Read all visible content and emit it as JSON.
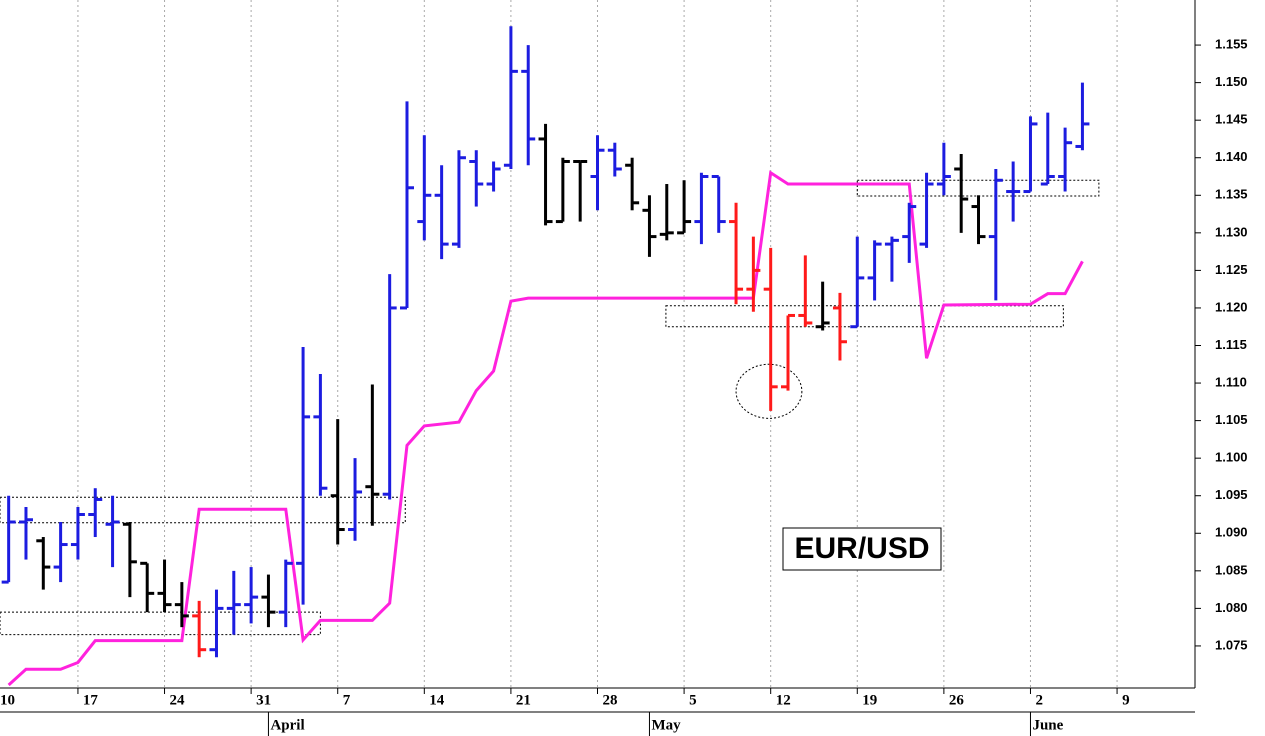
{
  "chart_data": {
    "type": "ohlc",
    "title": "EUR/USD",
    "x": [
      1,
      2,
      3,
      4,
      5,
      6,
      7,
      8,
      9,
      10,
      11,
      12,
      13,
      14,
      15,
      16,
      17,
      18,
      19,
      20,
      21,
      22,
      23,
      24,
      25,
      26,
      27,
      28,
      29,
      30,
      31,
      32,
      33,
      34,
      35,
      36,
      37,
      38,
      39,
      40,
      41,
      42,
      43,
      44,
      45,
      46,
      47,
      48,
      49,
      50,
      51,
      52,
      53,
      54,
      55,
      56,
      57,
      58,
      59,
      60,
      61,
      62,
      63
    ],
    "open": [
      1.0835,
      1.0915,
      1.089,
      1.0855,
      1.0885,
      1.0925,
      1.0912,
      1.0912,
      1.086,
      1.082,
      1.0805,
      1.079,
      1.0745,
      1.08,
      1.0805,
      1.0815,
      1.0795,
      1.086,
      1.1055,
      1.095,
      1.0905,
      1.0962,
      1.0952,
      1.12,
      1.1315,
      1.135,
      1.1285,
      1.1395,
      1.1365,
      1.139,
      1.1515,
      1.1425,
      1.1315,
      1.1395,
      1.1375,
      1.141,
      1.139,
      1.133,
      1.1298,
      1.13,
      1.1315,
      1.1375,
      1.1315,
      1.1225,
      1.1225,
      1.1095,
      1.119,
      1.1175,
      1.12,
      1.1175,
      1.124,
      1.1285,
      1.1295,
      1.1285,
      1.1365,
      1.1385,
      1.1335,
      1.1295,
      1.1355,
      1.1355,
      1.1365,
      1.1375,
      1.1415
    ],
    "high": [
      1.095,
      1.0935,
      1.0895,
      1.0915,
      1.0935,
      1.096,
      1.095,
      1.0915,
      1.086,
      1.0865,
      1.0835,
      1.081,
      1.0825,
      1.085,
      1.0855,
      1.0845,
      1.0865,
      1.1148,
      1.1112,
      1.1052,
      1.1,
      1.1098,
      1.1245,
      1.1475,
      1.143,
      1.139,
      1.141,
      1.141,
      1.1395,
      1.1575,
      1.155,
      1.1445,
      1.14,
      1.1395,
      1.143,
      1.142,
      1.14,
      1.135,
      1.1365,
      1.137,
      1.138,
      1.1375,
      1.134,
      1.1295,
      1.128,
      1.119,
      1.127,
      1.1235,
      1.122,
      1.1295,
      1.129,
      1.1295,
      1.134,
      1.138,
      1.142,
      1.1405,
      1.135,
      1.1385,
      1.1395,
      1.1455,
      1.146,
      1.144,
      1.15
    ],
    "low": [
      1.0835,
      1.0865,
      1.0825,
      1.0835,
      1.0865,
      1.0895,
      1.0855,
      1.0815,
      1.0795,
      1.0795,
      1.0775,
      1.0735,
      1.0735,
      1.0765,
      1.078,
      1.0775,
      1.0775,
      1.0805,
      1.095,
      1.0885,
      1.089,
      1.091,
      1.0945,
      1.12,
      1.129,
      1.1265,
      1.128,
      1.1335,
      1.1355,
      1.1385,
      1.139,
      1.131,
      1.1315,
      1.1315,
      1.133,
      1.1375,
      1.133,
      1.1268,
      1.129,
      1.13,
      1.1285,
      1.13,
      1.1205,
      1.1195,
      1.1063,
      1.109,
      1.1175,
      1.117,
      1.113,
      1.1175,
      1.121,
      1.1235,
      1.126,
      1.128,
      1.135,
      1.13,
      1.1285,
      1.121,
      1.1315,
      1.1355,
      1.1365,
      1.1355,
      1.141
    ],
    "close": [
      1.0915,
      1.0918,
      1.0855,
      1.0885,
      1.0925,
      1.0945,
      1.0915,
      1.0862,
      1.082,
      1.0805,
      1.079,
      1.0745,
      1.08,
      1.0805,
      1.0815,
      1.0795,
      1.086,
      1.1055,
      1.096,
      1.0905,
      1.0955,
      1.0952,
      1.12,
      1.136,
      1.135,
      1.1285,
      1.14,
      1.1365,
      1.1385,
      1.1515,
      1.1425,
      1.1315,
      1.1395,
      1.1395,
      1.141,
      1.1385,
      1.134,
      1.1295,
      1.13,
      1.1315,
      1.1375,
      1.1315,
      1.1225,
      1.125,
      1.1095,
      1.119,
      1.118,
      1.118,
      1.1155,
      1.124,
      1.1285,
      1.129,
      1.1335,
      1.1365,
      1.1375,
      1.1345,
      1.1295,
      1.137,
      1.1355,
      1.1445,
      1.1375,
      1.142,
      1.1445
    ],
    "bar_colors": [
      "#1c1ce0",
      "#1c1ce0",
      "#000000",
      "#1c1ce0",
      "#1c1ce0",
      "#1c1ce0",
      "#1c1ce0",
      "#000000",
      "#000000",
      "#000000",
      "#000000",
      "#ff1a1a",
      "#1c1ce0",
      "#1c1ce0",
      "#1c1ce0",
      "#000000",
      "#1c1ce0",
      "#1c1ce0",
      "#1c1ce0",
      "#000000",
      "#1c1ce0",
      "#000000",
      "#1c1ce0",
      "#1c1ce0",
      "#1c1ce0",
      "#1c1ce0",
      "#1c1ce0",
      "#1c1ce0",
      "#1c1ce0",
      "#1c1ce0",
      "#1c1ce0",
      "#000000",
      "#000000",
      "#000000",
      "#1c1ce0",
      "#1c1ce0",
      "#000000",
      "#000000",
      "#000000",
      "#000000",
      "#1c1ce0",
      "#1c1ce0",
      "#ff1a1a",
      "#ff1a1a",
      "#ff1a1a",
      "#ff1a1a",
      "#ff1a1a",
      "#000000",
      "#ff1a1a",
      "#1c1ce0",
      "#1c1ce0",
      "#1c1ce0",
      "#1c1ce0",
      "#1c1ce0",
      "#1c1ce0",
      "#000000",
      "#000000",
      "#1c1ce0",
      "#1c1ce0",
      "#1c1ce0",
      "#1c1ce0",
      "#1c1ce0",
      "#1c1ce0"
    ],
    "line": {
      "color": "#ff22dd",
      "x": [
        1,
        2,
        4,
        5,
        6,
        11,
        12,
        17,
        18,
        19,
        22,
        23,
        24,
        25,
        27,
        28,
        29,
        30,
        31,
        44,
        45,
        46,
        53,
        54,
        55,
        60,
        61,
        62,
        63
      ],
      "values": [
        1.0698,
        1.0719,
        1.0719,
        1.0728,
        1.0757,
        1.0757,
        1.0932,
        1.0932,
        1.0758,
        1.0784,
        1.0784,
        1.0807,
        1.1017,
        1.1043,
        1.1048,
        1.109,
        1.1116,
        1.1209,
        1.1213,
        1.1213,
        1.138,
        1.1365,
        1.1365,
        1.1133,
        1.1204,
        1.1205,
        1.1219,
        1.1219,
        1.1262
      ]
    },
    "zones": [
      {
        "x0": 0.5,
        "x1": 23.9,
        "y0": 1.0914,
        "y1": 1.0948
      },
      {
        "x0": 0.5,
        "x1": 19.0,
        "y0": 1.0765,
        "y1": 1.0795
      },
      {
        "x0": 38.95,
        "x1": 61.9,
        "y0": 1.1175,
        "y1": 1.1203
      },
      {
        "x0": 50.0,
        "x1": 63.95,
        "y0": 1.1349,
        "y1": 1.137
      }
    ],
    "ellipse": {
      "x": 44.9,
      "y": 1.1089,
      "rx": 1.9,
      "ry": 0.0036
    },
    "xlim": [
      0.5,
      69.5
    ],
    "ylim": [
      1.0694,
      1.161
    ],
    "xticks": [
      {
        "value": 0,
        "label": "10"
      },
      {
        "value": 5,
        "label": "17"
      },
      {
        "value": 10,
        "label": "24"
      },
      {
        "value": 15,
        "label": "31"
      },
      {
        "value": 20,
        "label": "7"
      },
      {
        "value": 25,
        "label": "14"
      },
      {
        "value": 30,
        "label": "21"
      },
      {
        "value": 35,
        "label": "28"
      },
      {
        "value": 40,
        "label": "5"
      },
      {
        "value": 45,
        "label": "12"
      },
      {
        "value": 50,
        "label": "19"
      },
      {
        "value": 55,
        "label": "26"
      },
      {
        "value": 60,
        "label": "2"
      },
      {
        "value": 65,
        "label": "9"
      }
    ],
    "months": [
      {
        "value": 16,
        "label": "April"
      },
      {
        "value": 38,
        "label": "May"
      },
      {
        "value": 60,
        "label": "June"
      }
    ],
    "yticks": [
      1.075,
      {
        "value": 1.08,
        "label": "1.080"
      },
      1.085,
      {
        "value": 1.09,
        "label": "1.090"
      },
      1.095,
      {
        "value": 1.1,
        "label": "1.100"
      },
      1.105,
      {
        "value": 1.11,
        "label": "1.110"
      },
      1.115,
      {
        "value": 1.12,
        "label": "1.120"
      },
      1.125,
      {
        "value": 1.13,
        "label": "1.130"
      },
      1.135,
      {
        "value": 1.14,
        "label": "1.140"
      },
      1.145,
      {
        "value": 1.15,
        "label": "1.150"
      },
      1.155
    ],
    "grid": true
  }
}
